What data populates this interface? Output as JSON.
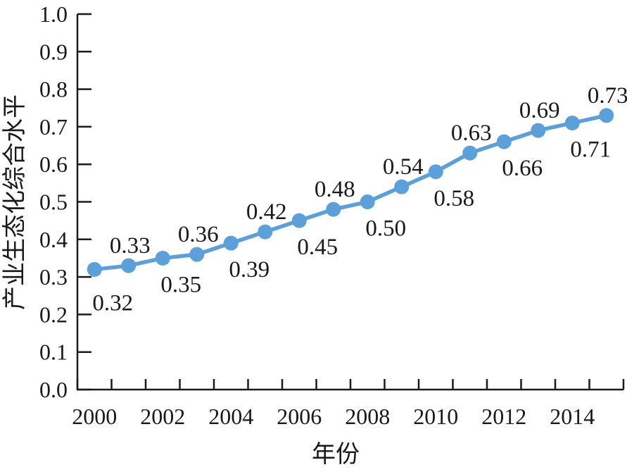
{
  "chart_data": {
    "type": "line",
    "x": [
      2000,
      2001,
      2002,
      2003,
      2004,
      2005,
      2006,
      2007,
      2008,
      2009,
      2010,
      2011,
      2012,
      2013,
      2014,
      2015
    ],
    "values": [
      0.32,
      0.33,
      0.35,
      0.36,
      0.39,
      0.42,
      0.45,
      0.48,
      0.5,
      0.54,
      0.58,
      0.63,
      0.66,
      0.69,
      0.71,
      0.73
    ],
    "data_labels": [
      "0.32",
      "0.33",
      "0.35",
      "0.36",
      "0.39",
      "0.42",
      "0.45",
      "0.48",
      "0.50",
      "0.54",
      "0.58",
      "0.63",
      "0.66",
      "0.69",
      "0.71",
      "0.73"
    ],
    "label_positions": [
      "below",
      "above",
      "below",
      "above",
      "below",
      "above",
      "below",
      "above",
      "below",
      "above",
      "below",
      "above",
      "below",
      "above",
      "below",
      "above"
    ],
    "title": "",
    "xlabel": "年份",
    "ylabel": "产业生态化综合水平",
    "ylim": [
      0.0,
      1.0
    ],
    "y_ticks": [
      "0.0",
      "0.1",
      "0.2",
      "0.3",
      "0.4",
      "0.5",
      "0.6",
      "0.7",
      "0.8",
      "0.9",
      "1.0"
    ],
    "x_tick_labels": [
      "2000",
      "2002",
      "2004",
      "2006",
      "2008",
      "2010",
      "2012",
      "2014"
    ],
    "grid": false,
    "legend": "none",
    "line_color": "#5BA0D8",
    "marker_color": "#5BA0D8",
    "axis_color": "#1a1a1a",
    "text_color": "#1a1a1a"
  }
}
